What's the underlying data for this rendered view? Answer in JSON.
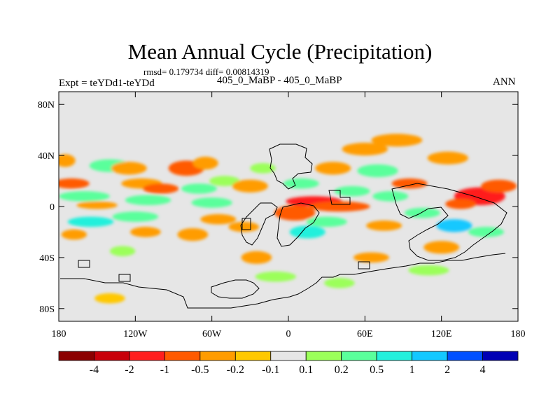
{
  "chart_data": {
    "type": "heatmap",
    "title": "Mean Annual Cycle (Precipitation)",
    "stats_line": "rmsd= 0.179734 diff= 0.00814319",
    "left_label": "Expt = teYDd1-teYDd",
    "center_label": "405_0_MaBP - 405_0_MaBP",
    "right_label": "ANN",
    "x_range": [
      -180,
      180
    ],
    "y_range": [
      -90,
      90
    ],
    "x_ticks": [
      {
        "value": -180,
        "label": "180"
      },
      {
        "value": -120,
        "label": "120W"
      },
      {
        "value": -60,
        "label": "60W"
      },
      {
        "value": 0,
        "label": "0"
      },
      {
        "value": 60,
        "label": "60E"
      },
      {
        "value": 120,
        "label": "120E"
      },
      {
        "value": 180,
        "label": "180"
      }
    ],
    "y_ticks": [
      {
        "value": 80,
        "label": "80N"
      },
      {
        "value": 40,
        "label": "40N"
      },
      {
        "value": 0,
        "label": "0"
      },
      {
        "value": -40,
        "label": "40S"
      },
      {
        "value": -80,
        "label": "80S"
      }
    ],
    "colorbar": {
      "colors": [
        "#8b0000",
        "#c8000a",
        "#ff1e1e",
        "#ff5a00",
        "#ff9c00",
        "#ffc800",
        "#e6e6e6",
        "#9bff5a",
        "#5aff9b",
        "#23f0dc",
        "#14c8ff",
        "#0050ff",
        "#0000b4"
      ],
      "labels": [
        "-4",
        "-2",
        "-1",
        "-0.5",
        "-0.2",
        "-0.1",
        "0.1",
        "0.2",
        "0.5",
        "1",
        "2",
        "4"
      ]
    },
    "colors": {
      "background": "#e6e6e6",
      "neg_weak": "#ffc800",
      "neg_mod": "#ff9c00",
      "neg_strong": "#ff5a00",
      "neg_vstrong": "#ff1e1e",
      "pos_weak": "#9bff5a",
      "pos_mod": "#5aff9b",
      "pos_strong": "#23f0dc",
      "pos_vstrong": "#14c8ff",
      "coast": "#000000"
    },
    "anomaly_patches": [
      {
        "lon": -175,
        "lat": 36,
        "w": 8,
        "h": 5,
        "level": "neg_mod"
      },
      {
        "lon": -170,
        "lat": 18,
        "w": 14,
        "h": 4,
        "level": "neg_strong"
      },
      {
        "lon": -160,
        "lat": 8,
        "w": 20,
        "h": 4,
        "level": "pos_mod"
      },
      {
        "lon": -150,
        "lat": 1,
        "w": 16,
        "h": 3,
        "level": "neg_mod"
      },
      {
        "lon": -155,
        "lat": -12,
        "w": 18,
        "h": 4,
        "level": "pos_strong"
      },
      {
        "lon": -168,
        "lat": -22,
        "w": 10,
        "h": 4,
        "level": "neg_mod"
      },
      {
        "lon": -140,
        "lat": 32,
        "w": 16,
        "h": 5,
        "level": "pos_mod"
      },
      {
        "lon": -125,
        "lat": 30,
        "w": 14,
        "h": 5,
        "level": "neg_mod"
      },
      {
        "lon": -115,
        "lat": 18,
        "w": 16,
        "h": 4,
        "level": "neg_mod"
      },
      {
        "lon": -100,
        "lat": 14,
        "w": 14,
        "h": 4,
        "level": "neg_strong"
      },
      {
        "lon": -110,
        "lat": 5,
        "w": 18,
        "h": 4,
        "level": "pos_mod"
      },
      {
        "lon": -120,
        "lat": -8,
        "w": 18,
        "h": 4,
        "level": "pos_mod"
      },
      {
        "lon": -112,
        "lat": -20,
        "w": 12,
        "h": 4,
        "level": "neg_mod"
      },
      {
        "lon": -130,
        "lat": -35,
        "w": 10,
        "h": 4,
        "level": "pos_weak"
      },
      {
        "lon": -140,
        "lat": -72,
        "w": 12,
        "h": 4,
        "level": "neg_weak"
      },
      {
        "lon": -80,
        "lat": 30,
        "w": 14,
        "h": 6,
        "level": "neg_strong"
      },
      {
        "lon": -65,
        "lat": 34,
        "w": 10,
        "h": 5,
        "level": "neg_mod"
      },
      {
        "lon": -70,
        "lat": 14,
        "w": 14,
        "h": 4,
        "level": "pos_mod"
      },
      {
        "lon": -60,
        "lat": 3,
        "w": 16,
        "h": 4,
        "level": "pos_mod"
      },
      {
        "lon": -55,
        "lat": -10,
        "w": 14,
        "h": 4,
        "level": "neg_mod"
      },
      {
        "lon": -75,
        "lat": -22,
        "w": 12,
        "h": 5,
        "level": "neg_mod"
      },
      {
        "lon": -50,
        "lat": 20,
        "w": 12,
        "h": 4,
        "level": "pos_weak"
      },
      {
        "lon": -30,
        "lat": 16,
        "w": 14,
        "h": 5,
        "level": "neg_mod"
      },
      {
        "lon": -20,
        "lat": 30,
        "w": 10,
        "h": 4,
        "level": "pos_weak"
      },
      {
        "lon": -35,
        "lat": -16,
        "w": 12,
        "h": 4,
        "level": "neg_mod"
      },
      {
        "lon": -25,
        "lat": -40,
        "w": 12,
        "h": 5,
        "level": "neg_mod"
      },
      {
        "lon": -10,
        "lat": -55,
        "w": 16,
        "h": 4,
        "level": "pos_weak"
      },
      {
        "lon": 5,
        "lat": -5,
        "w": 16,
        "h": 6,
        "level": "neg_strong"
      },
      {
        "lon": 20,
        "lat": 4,
        "w": 22,
        "h": 4,
        "level": "neg_vstrong"
      },
      {
        "lon": 40,
        "lat": 0,
        "w": 24,
        "h": 4,
        "level": "neg_strong"
      },
      {
        "lon": 10,
        "lat": 18,
        "w": 14,
        "h": 4,
        "level": "pos_mod"
      },
      {
        "lon": 15,
        "lat": -20,
        "w": 14,
        "h": 5,
        "level": "pos_strong"
      },
      {
        "lon": 30,
        "lat": -12,
        "w": 16,
        "h": 4,
        "level": "pos_mod"
      },
      {
        "lon": 50,
        "lat": 12,
        "w": 14,
        "h": 4,
        "level": "pos_mod"
      },
      {
        "lon": 35,
        "lat": 30,
        "w": 14,
        "h": 5,
        "level": "neg_mod"
      },
      {
        "lon": 60,
        "lat": 45,
        "w": 18,
        "h": 5,
        "level": "neg_mod"
      },
      {
        "lon": 85,
        "lat": 52,
        "w": 20,
        "h": 5,
        "level": "neg_mod"
      },
      {
        "lon": 70,
        "lat": 28,
        "w": 16,
        "h": 5,
        "level": "pos_mod"
      },
      {
        "lon": 95,
        "lat": 18,
        "w": 14,
        "h": 4,
        "level": "neg_strong"
      },
      {
        "lon": 80,
        "lat": 8,
        "w": 14,
        "h": 4,
        "level": "pos_mod"
      },
      {
        "lon": 105,
        "lat": -5,
        "w": 14,
        "h": 4,
        "level": "pos_mod"
      },
      {
        "lon": 75,
        "lat": -15,
        "w": 14,
        "h": 4,
        "level": "neg_mod"
      },
      {
        "lon": 125,
        "lat": 38,
        "w": 16,
        "h": 5,
        "level": "neg_mod"
      },
      {
        "lon": 150,
        "lat": 8,
        "w": 20,
        "h": 7,
        "level": "neg_vstrong"
      },
      {
        "lon": 165,
        "lat": 16,
        "w": 14,
        "h": 5,
        "level": "neg_strong"
      },
      {
        "lon": 135,
        "lat": 2,
        "w": 12,
        "h": 4,
        "level": "neg_strong"
      },
      {
        "lon": 130,
        "lat": -15,
        "w": 14,
        "h": 5,
        "level": "pos_vstrong"
      },
      {
        "lon": 155,
        "lat": -20,
        "w": 14,
        "h": 4,
        "level": "pos_mod"
      },
      {
        "lon": 120,
        "lat": -32,
        "w": 14,
        "h": 5,
        "level": "neg_mod"
      },
      {
        "lon": 110,
        "lat": -50,
        "w": 16,
        "h": 4,
        "level": "pos_weak"
      },
      {
        "lon": 65,
        "lat": -40,
        "w": 14,
        "h": 4,
        "level": "neg_mod"
      },
      {
        "lon": 40,
        "lat": -60,
        "w": 12,
        "h": 4,
        "level": "pos_weak"
      }
    ]
  }
}
